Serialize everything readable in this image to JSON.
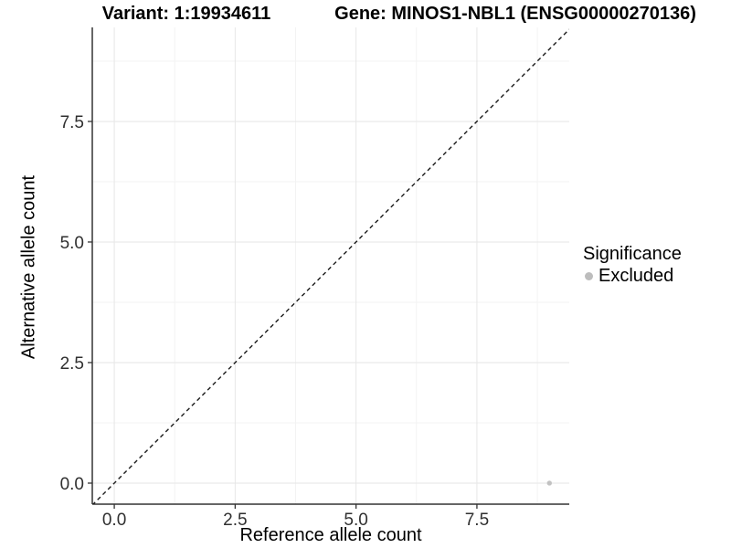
{
  "window": {
    "title_left": "Variant: 1:19934611",
    "title_right": "Gene: MINOS1-NBL1 (ENSG00000270136)"
  },
  "chart_data": {
    "type": "scatter",
    "title": "Variant: 1:19934611",
    "subtitle": "Gene: MINOS1-NBL1 (ENSG00000270136)",
    "xlabel": "Reference allele count",
    "ylabel": "Alternative allele count",
    "xlim": [
      -0.455,
      9.41
    ],
    "ylim": [
      -0.436,
      9.45
    ],
    "x_ticks": {
      "values": [
        0,
        2.5,
        5,
        7.5
      ],
      "labels": [
        "0.0",
        "2.5",
        "5.0",
        "7.5"
      ]
    },
    "y_ticks": {
      "values": [
        0,
        2.5,
        5,
        7.5
      ],
      "labels": [
        "0.0",
        "2.5",
        "5.0",
        "7.5"
      ]
    },
    "x_minor_ticks": [
      1.25,
      3.75,
      6.25,
      8.75
    ],
    "y_minor_ticks": [
      1.25,
      3.75,
      6.25,
      8.75
    ],
    "grid": true,
    "identity_line": {
      "slope": 1,
      "intercept": 0,
      "style": "dashed",
      "color": "#1a1a1a"
    },
    "points": [
      {
        "x": 9,
        "y": 0,
        "series": "Excluded"
      }
    ],
    "legend": {
      "position": "right",
      "title": "Significance",
      "items": [
        {
          "label": "Excluded",
          "color": "#bdbdbd"
        }
      ]
    },
    "colors": {
      "grid_major": "#e6e6e6",
      "grid_minor": "#f3f3f3",
      "axis_line": "#333333",
      "tick_mark": "#333333",
      "tick_label": "#303030",
      "point": "#c2c2c2"
    }
  }
}
